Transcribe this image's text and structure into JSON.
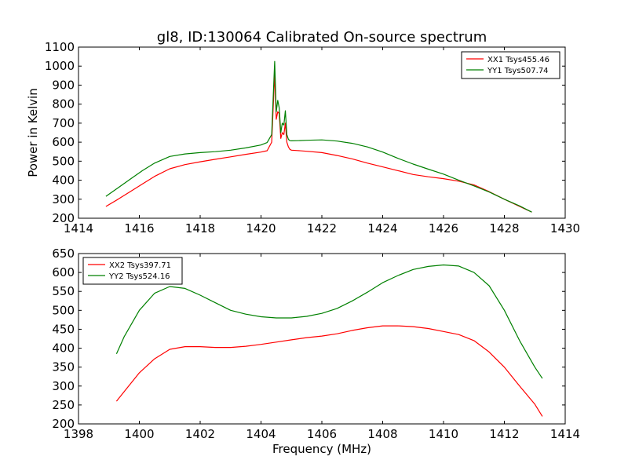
{
  "figure": {
    "title": "gl8, ID:130064 Calibrated On-source spectrum",
    "ylabel": "Power in Kelvin",
    "xlabel": "Frequency (MHz)"
  },
  "chart_data": [
    {
      "type": "line",
      "title": "gl8, ID:130064 Calibrated On-source spectrum",
      "ylabel": "Power in Kelvin",
      "xlabel": "",
      "xlim": [
        1414,
        1430
      ],
      "ylim": [
        200,
        1100
      ],
      "xticks": [
        1414,
        1416,
        1418,
        1420,
        1422,
        1424,
        1426,
        1428,
        1430
      ],
      "yticks": [
        200,
        300,
        400,
        500,
        600,
        700,
        800,
        900,
        1000,
        1100
      ],
      "legend_position": "top-right",
      "series": [
        {
          "name": "XX1 Tsys455.46",
          "color": "#ff0000",
          "x": [
            1414.9,
            1415.3,
            1415.7,
            1416.1,
            1416.5,
            1417.0,
            1417.5,
            1418.0,
            1418.5,
            1419.0,
            1419.5,
            1420.0,
            1420.2,
            1420.35,
            1420.45,
            1420.5,
            1420.55,
            1420.6,
            1420.65,
            1420.7,
            1420.75,
            1420.8,
            1420.85,
            1420.9,
            1420.95,
            1421.0,
            1421.2,
            1421.5,
            1422.0,
            1422.5,
            1423.0,
            1423.5,
            1424.0,
            1424.5,
            1425.0,
            1425.5,
            1426.0,
            1426.5,
            1427.0,
            1427.5,
            1428.0,
            1428.5,
            1428.9
          ],
          "y": [
            262,
            300,
            340,
            380,
            420,
            460,
            482,
            497,
            510,
            523,
            536,
            548,
            555,
            600,
            960,
            720,
            760,
            750,
            620,
            650,
            640,
            700,
            600,
            575,
            562,
            558,
            556,
            552,
            545,
            530,
            512,
            490,
            470,
            450,
            430,
            418,
            408,
            395,
            375,
            340,
            300,
            262,
            232
          ]
        },
        {
          "name": "YY1 Tsys507.74",
          "color": "#008000",
          "x": [
            1414.9,
            1415.3,
            1415.7,
            1416.1,
            1416.5,
            1417.0,
            1417.5,
            1418.0,
            1418.5,
            1419.0,
            1419.5,
            1420.0,
            1420.2,
            1420.35,
            1420.45,
            1420.5,
            1420.55,
            1420.6,
            1420.65,
            1420.7,
            1420.75,
            1420.8,
            1420.85,
            1420.9,
            1420.95,
            1421.0,
            1421.2,
            1421.5,
            1422.0,
            1422.5,
            1423.0,
            1423.5,
            1424.0,
            1424.5,
            1425.0,
            1425.5,
            1426.0,
            1426.5,
            1427.0,
            1427.5,
            1428.0,
            1428.5,
            1428.9
          ],
          "y": [
            315,
            360,
            405,
            450,
            490,
            525,
            538,
            545,
            550,
            558,
            570,
            585,
            598,
            640,
            1025,
            760,
            820,
            780,
            650,
            700,
            690,
            765,
            640,
            615,
            608,
            607,
            608,
            610,
            612,
            606,
            594,
            575,
            548,
            515,
            485,
            458,
            432,
            400,
            370,
            338,
            300,
            265,
            232
          ]
        }
      ]
    },
    {
      "type": "line",
      "title": "",
      "ylabel": "",
      "xlabel": "Frequency (MHz)",
      "xlim": [
        1398,
        1414
      ],
      "ylim": [
        200,
        650
      ],
      "xticks": [
        1398,
        1400,
        1402,
        1404,
        1406,
        1408,
        1410,
        1412,
        1414
      ],
      "yticks": [
        200,
        250,
        300,
        350,
        400,
        450,
        500,
        550,
        600,
        650
      ],
      "legend_position": "top-left",
      "series": [
        {
          "name": "XX2 Tsys397.71",
          "color": "#ff0000",
          "x": [
            1399.25,
            1399.5,
            1400.0,
            1400.5,
            1401.0,
            1401.5,
            1402.0,
            1402.5,
            1403.0,
            1403.5,
            1404.0,
            1404.5,
            1405.0,
            1405.5,
            1406.0,
            1406.5,
            1407.0,
            1407.5,
            1408.0,
            1408.5,
            1409.0,
            1409.5,
            1410.0,
            1410.5,
            1411.0,
            1411.5,
            1412.0,
            1412.5,
            1413.0,
            1413.25
          ],
          "y": [
            260,
            285,
            335,
            372,
            397,
            404,
            404,
            402,
            402,
            405,
            410,
            416,
            422,
            428,
            432,
            438,
            447,
            454,
            459,
            459,
            457,
            452,
            444,
            436,
            420,
            390,
            350,
            300,
            252,
            220
          ]
        },
        {
          "name": "YY2 Tsys524.16",
          "color": "#008000",
          "x": [
            1399.25,
            1399.5,
            1400.0,
            1400.5,
            1401.0,
            1401.5,
            1402.0,
            1402.5,
            1403.0,
            1403.5,
            1404.0,
            1404.5,
            1405.0,
            1405.5,
            1406.0,
            1406.5,
            1407.0,
            1407.5,
            1408.0,
            1408.5,
            1409.0,
            1409.5,
            1410.0,
            1410.5,
            1411.0,
            1411.5,
            1412.0,
            1412.5,
            1413.0,
            1413.25
          ],
          "y": [
            385,
            430,
            500,
            545,
            563,
            558,
            540,
            520,
            500,
            490,
            483,
            480,
            480,
            484,
            492,
            505,
            525,
            548,
            573,
            592,
            608,
            616,
            620,
            617,
            600,
            565,
            500,
            420,
            350,
            320
          ]
        }
      ]
    }
  ]
}
